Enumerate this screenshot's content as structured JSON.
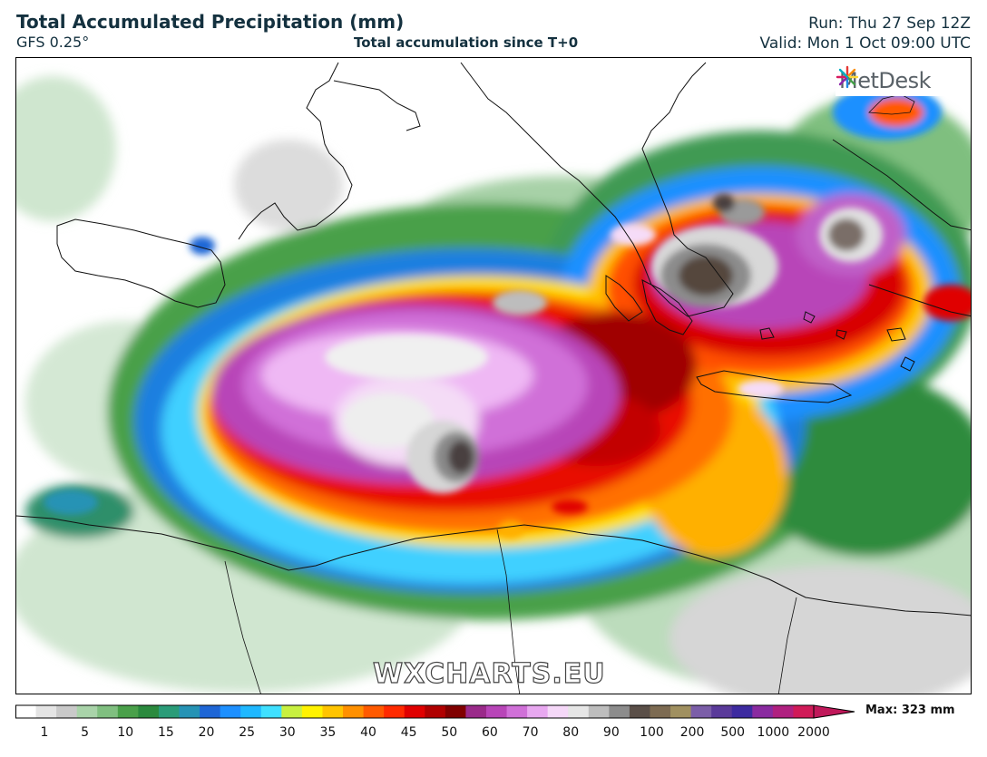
{
  "header": {
    "title": "Total Accumulated Precipitation (mm)",
    "model": "GFS 0.25°",
    "subtitle": "Total accumulation since T+0",
    "run": "Run: Thu 27 Sep 12Z",
    "valid": "Valid: Mon 1 Oct 09:00 UTC"
  },
  "map": {
    "logo_text": "MetDesk",
    "watermark": "WXCHARTS.EU"
  },
  "legend": {
    "ticks": [
      "1",
      "5",
      "10",
      "15",
      "20",
      "25",
      "30",
      "35",
      "40",
      "45",
      "50",
      "60",
      "70",
      "80",
      "90",
      "100",
      "200",
      "500",
      "1000",
      "2000"
    ],
    "max_label": "Max: 323 mm",
    "colors": [
      "#ffffff",
      "#e4e4e4",
      "#c9c9c9",
      "#a9d3a9",
      "#80bf80",
      "#4aa04a",
      "#2b8a3e",
      "#2a9c78",
      "#2693b5",
      "#1f66d6",
      "#1e90ff",
      "#1fb8ff",
      "#3fe0ff",
      "#c8f040",
      "#fff200",
      "#ffc400",
      "#ff9000",
      "#ff5a00",
      "#ff2a00",
      "#e00000",
      "#b00000",
      "#800000",
      "#9a2a8a",
      "#b845b8",
      "#d070d8",
      "#e8a8f0",
      "#f5d8f8",
      "#e6e6e6",
      "#bdbdbd",
      "#8c8c8c",
      "#5a4f48",
      "#7d6b52",
      "#a09060",
      "#7b5ea8",
      "#5a3a9a",
      "#3d2aa0",
      "#8a2aa0",
      "#b02080",
      "#d01a58"
    ]
  }
}
